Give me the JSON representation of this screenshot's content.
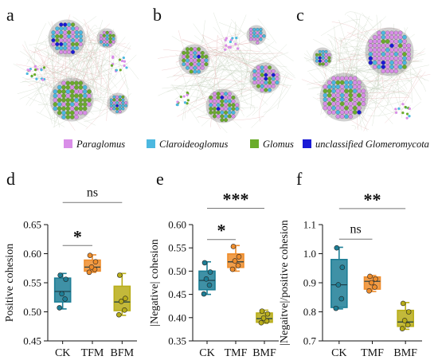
{
  "network": {
    "panels": [
      "a",
      "b",
      "c"
    ],
    "legend": [
      {
        "label": "Paraglomus",
        "color": "#d98ee8"
      },
      {
        "label": "Claroideoglomus",
        "color": "#4cb8e0"
      },
      {
        "label": "Glomus",
        "color": "#6aac2a"
      },
      {
        "label": "unclassified Glomeromycota",
        "color": "#1a1ad6"
      }
    ]
  },
  "chart_data": [
    {
      "type": "box",
      "panel": "d",
      "ylabel": "Positive cohesion",
      "ylim": [
        0.45,
        0.65
      ],
      "yticks": [
        "0.45",
        "0.50",
        "0.55",
        "0.60",
        "0.65"
      ],
      "categories": [
        "CK",
        "TFM",
        "BFM"
      ],
      "colors": [
        "#1d7e96",
        "#ef8d2c",
        "#b8ad18"
      ],
      "boxes": [
        {
          "min": 0.505,
          "q1": 0.517,
          "median": 0.535,
          "q3": 0.558,
          "max": 0.566,
          "points": [
            0.507,
            0.522,
            0.531,
            0.556,
            0.563
          ]
        },
        {
          "min": 0.568,
          "q1": 0.57,
          "median": 0.577,
          "q3": 0.589,
          "max": 0.598,
          "points": [
            0.568,
            0.573,
            0.577,
            0.586,
            0.597
          ]
        },
        {
          "min": 0.494,
          "q1": 0.502,
          "median": 0.517,
          "q3": 0.544,
          "max": 0.566,
          "points": [
            0.495,
            0.503,
            0.518,
            0.523,
            0.563
          ]
        }
      ],
      "significance": [
        {
          "from": 0,
          "to": 2,
          "label": "ns",
          "level": 0.688
        },
        {
          "from": 0,
          "to": 1,
          "label": "*",
          "level": 0.614
        }
      ]
    },
    {
      "type": "box",
      "panel": "e",
      "ylabel": "|Negative| cohesion",
      "ylim": [
        0.35,
        0.6
      ],
      "yticks": [
        "0.35",
        "0.40",
        "0.45",
        "0.50",
        "0.55",
        "0.60"
      ],
      "categories": [
        "CK",
        "TMF",
        "BMF"
      ],
      "colors": [
        "#1d7e96",
        "#ef8d2c",
        "#b8ad18"
      ],
      "boxes": [
        {
          "min": 0.45,
          "q1": 0.46,
          "median": 0.48,
          "q3": 0.5,
          "max": 0.52,
          "points": [
            0.451,
            0.47,
            0.483,
            0.498,
            0.518
          ]
        },
        {
          "min": 0.5,
          "q1": 0.508,
          "median": 0.52,
          "q3": 0.537,
          "max": 0.555,
          "points": [
            0.504,
            0.512,
            0.522,
            0.531,
            0.553
          ]
        },
        {
          "min": 0.388,
          "q1": 0.39,
          "median": 0.398,
          "q3": 0.41,
          "max": 0.416,
          "points": [
            0.389,
            0.393,
            0.399,
            0.408,
            0.414
          ]
        }
      ],
      "significance": [
        {
          "from": 0,
          "to": 2,
          "label": "***",
          "level": 0.635
        },
        {
          "from": 0,
          "to": 1,
          "label": "*",
          "level": 0.568
        }
      ]
    },
    {
      "type": "box",
      "panel": "f",
      "ylabel": "|Negaitve|/positive cohesion",
      "ylim": [
        0.7,
        1.1
      ],
      "yticks": [
        "0.7",
        "0.8",
        "0.9",
        "1.0",
        "1.1"
      ],
      "categories": [
        "CK",
        "TMF",
        "BMF"
      ],
      "colors": [
        "#1d7e96",
        "#ef8d2c",
        "#b8ad18"
      ],
      "boxes": [
        {
          "min": 0.81,
          "q1": 0.815,
          "median": 0.893,
          "q3": 0.98,
          "max": 1.022,
          "points": [
            0.812,
            0.845,
            0.893,
            0.953,
            1.02
          ]
        },
        {
          "min": 0.87,
          "q1": 0.878,
          "median": 0.905,
          "q3": 0.92,
          "max": 0.925,
          "points": [
            0.872,
            0.885,
            0.9,
            0.913,
            0.922
          ]
        },
        {
          "min": 0.74,
          "q1": 0.75,
          "median": 0.765,
          "q3": 0.805,
          "max": 0.832,
          "points": [
            0.742,
            0.755,
            0.77,
            0.8,
            0.829
          ]
        }
      ],
      "significance": [
        {
          "from": 0,
          "to": 2,
          "label": "**",
          "level": 1.155
        },
        {
          "from": 0,
          "to": 1,
          "label": "ns",
          "level": 1.05
        }
      ]
    }
  ]
}
